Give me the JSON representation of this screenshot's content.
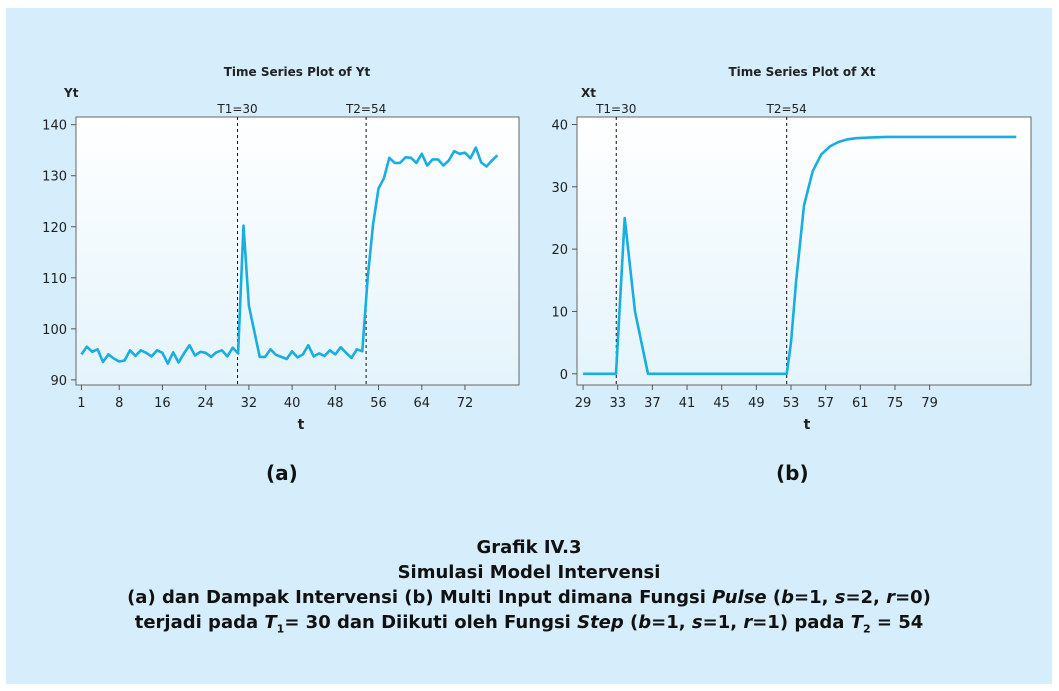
{
  "chart_data": [
    {
      "type": "line",
      "title": "Time Series Plot of Yt",
      "ylabel": "Yt",
      "xlabel": "t",
      "color": "#19aee0",
      "ylim": [
        89,
        141.5
      ],
      "xlim": [
        0,
        82
      ],
      "yticks": [
        90,
        100,
        110,
        120,
        130,
        140
      ],
      "xticks": [
        1,
        8,
        16,
        24,
        32,
        40,
        48,
        56,
        64,
        72
      ],
      "vlines": [
        {
          "x": 29.9,
          "label": "T1=30"
        },
        {
          "x": 53.7,
          "label": "T2=54"
        }
      ],
      "y": [
        95,
        96.5,
        95.5,
        96,
        93.5,
        95,
        94.2,
        93.6,
        93.8,
        95.8,
        94.7,
        95.8,
        95.3,
        94.6,
        95.8,
        95.3,
        93.2,
        95.4,
        93.4,
        95.2,
        96.8,
        94.8,
        95.5,
        95.3,
        94.5,
        95.4,
        95.8,
        94.6,
        96.3,
        95.2,
        120.2,
        104.5,
        99.5,
        94.5,
        94.5,
        96,
        94.9,
        94.5,
        94.1,
        95.6,
        94.4,
        95,
        96.8,
        94.6,
        95.2,
        94.7,
        95.8,
        95,
        96.4,
        95.3,
        94.3,
        96,
        95.6,
        110,
        120.5,
        127.5,
        129.5,
        133.5,
        132.5,
        132.5,
        133.6,
        133.5,
        132.5,
        134.3,
        132,
        133.2,
        133.2,
        132,
        133,
        134.8,
        134.3,
        134.5,
        133.4,
        135.5,
        132.6,
        131.8,
        133,
        134
      ]
    },
    {
      "type": "line",
      "title": "Time Series Plot of Xt",
      "ylabel": "Xt",
      "xlabel": "t",
      "color": "#19aee0",
      "ylim": [
        -1.8,
        41.2
      ],
      "xlim": [
        28.3,
        80.7
      ],
      "xtick_labels": [
        "29",
        "33",
        "37",
        "41",
        "45",
        "49",
        "53",
        "57",
        "61",
        "75",
        "79"
      ],
      "yticks": [
        0,
        10,
        20,
        30,
        40
      ],
      "vlines": [
        {
          "x": 32.83,
          "label": "T1=30"
        },
        {
          "x": 52.5,
          "label": "T2=54"
        }
      ],
      "points": [
        [
          29,
          0
        ],
        [
          32.8,
          0
        ],
        [
          33.8,
          25
        ],
        [
          35,
          10
        ],
        [
          36.5,
          0
        ],
        [
          52.5,
          0
        ],
        [
          53,
          5
        ],
        [
          53.6,
          15
        ],
        [
          54.5,
          27
        ],
        [
          55.5,
          32.5
        ],
        [
          56.5,
          35.2
        ],
        [
          57.5,
          36.5
        ],
        [
          58.5,
          37.2
        ],
        [
          59.5,
          37.6
        ],
        [
          60.5,
          37.8
        ],
        [
          62,
          37.9
        ],
        [
          64,
          38
        ],
        [
          79,
          38
        ]
      ]
    }
  ],
  "sublabels": {
    "a": "(a)",
    "b": "(b)"
  },
  "caption": {
    "line1": "Grafik IV.3",
    "line2": "Simulasi Model Intervensi",
    "line3": {
      "part1": "(a) dan Dampak Intervensi (b) Multi Input dimana Fungsi ",
      "pulse": "Pulse",
      "p_open": " (",
      "b": "b",
      "b_val": "=1, ",
      "s": "s",
      "s_val": "=2, ",
      "r": "r",
      "r_val": "=0)"
    },
    "line4": {
      "part1": "terjadi pada ",
      "T": "T",
      "sub1": "1",
      "part2": "= 30 dan Diikuti oleh Fungsi ",
      "step": "Step",
      "p_open": " (",
      "b": "b",
      "b_val": "=1, ",
      "s": "s",
      "s_val": "=1, ",
      "r": "r",
      "r_val": "=1) pada ",
      "T2": "T",
      "sub2": "2",
      "part3": " = 54"
    }
  }
}
